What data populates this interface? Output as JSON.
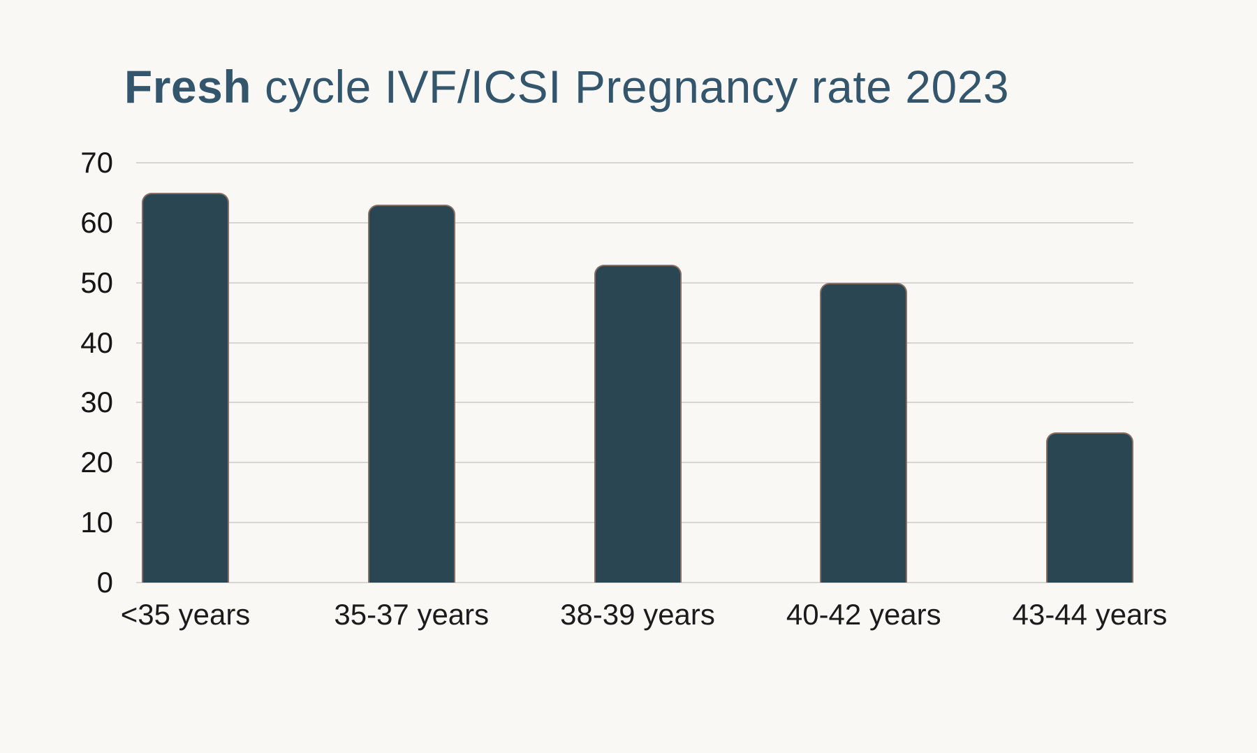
{
  "title": {
    "bold": "Fresh",
    "rest": " cycle IVF/ICSI Pregnancy rate 2023"
  },
  "chart_data": {
    "type": "bar",
    "title": "Fresh cycle IVF/ICSI Pregnancy rate 2023",
    "categories": [
      "<35 years",
      "35-37 years",
      "38-39 years",
      "40-42 years",
      "43-44 years"
    ],
    "values": [
      65,
      63,
      53,
      50,
      25
    ],
    "xlabel": "",
    "ylabel": "",
    "ylim": [
      0,
      70
    ],
    "yticks": [
      0,
      10,
      20,
      30,
      40,
      50,
      60,
      70
    ],
    "grid": true,
    "legend": false,
    "colors": {
      "background": "#faf8f5",
      "title": "#33566d",
      "bar_fill": "#2b4653",
      "bar_stroke": "#e89670",
      "gridline": "#d8d5d2",
      "tick_text": "#161616"
    }
  }
}
